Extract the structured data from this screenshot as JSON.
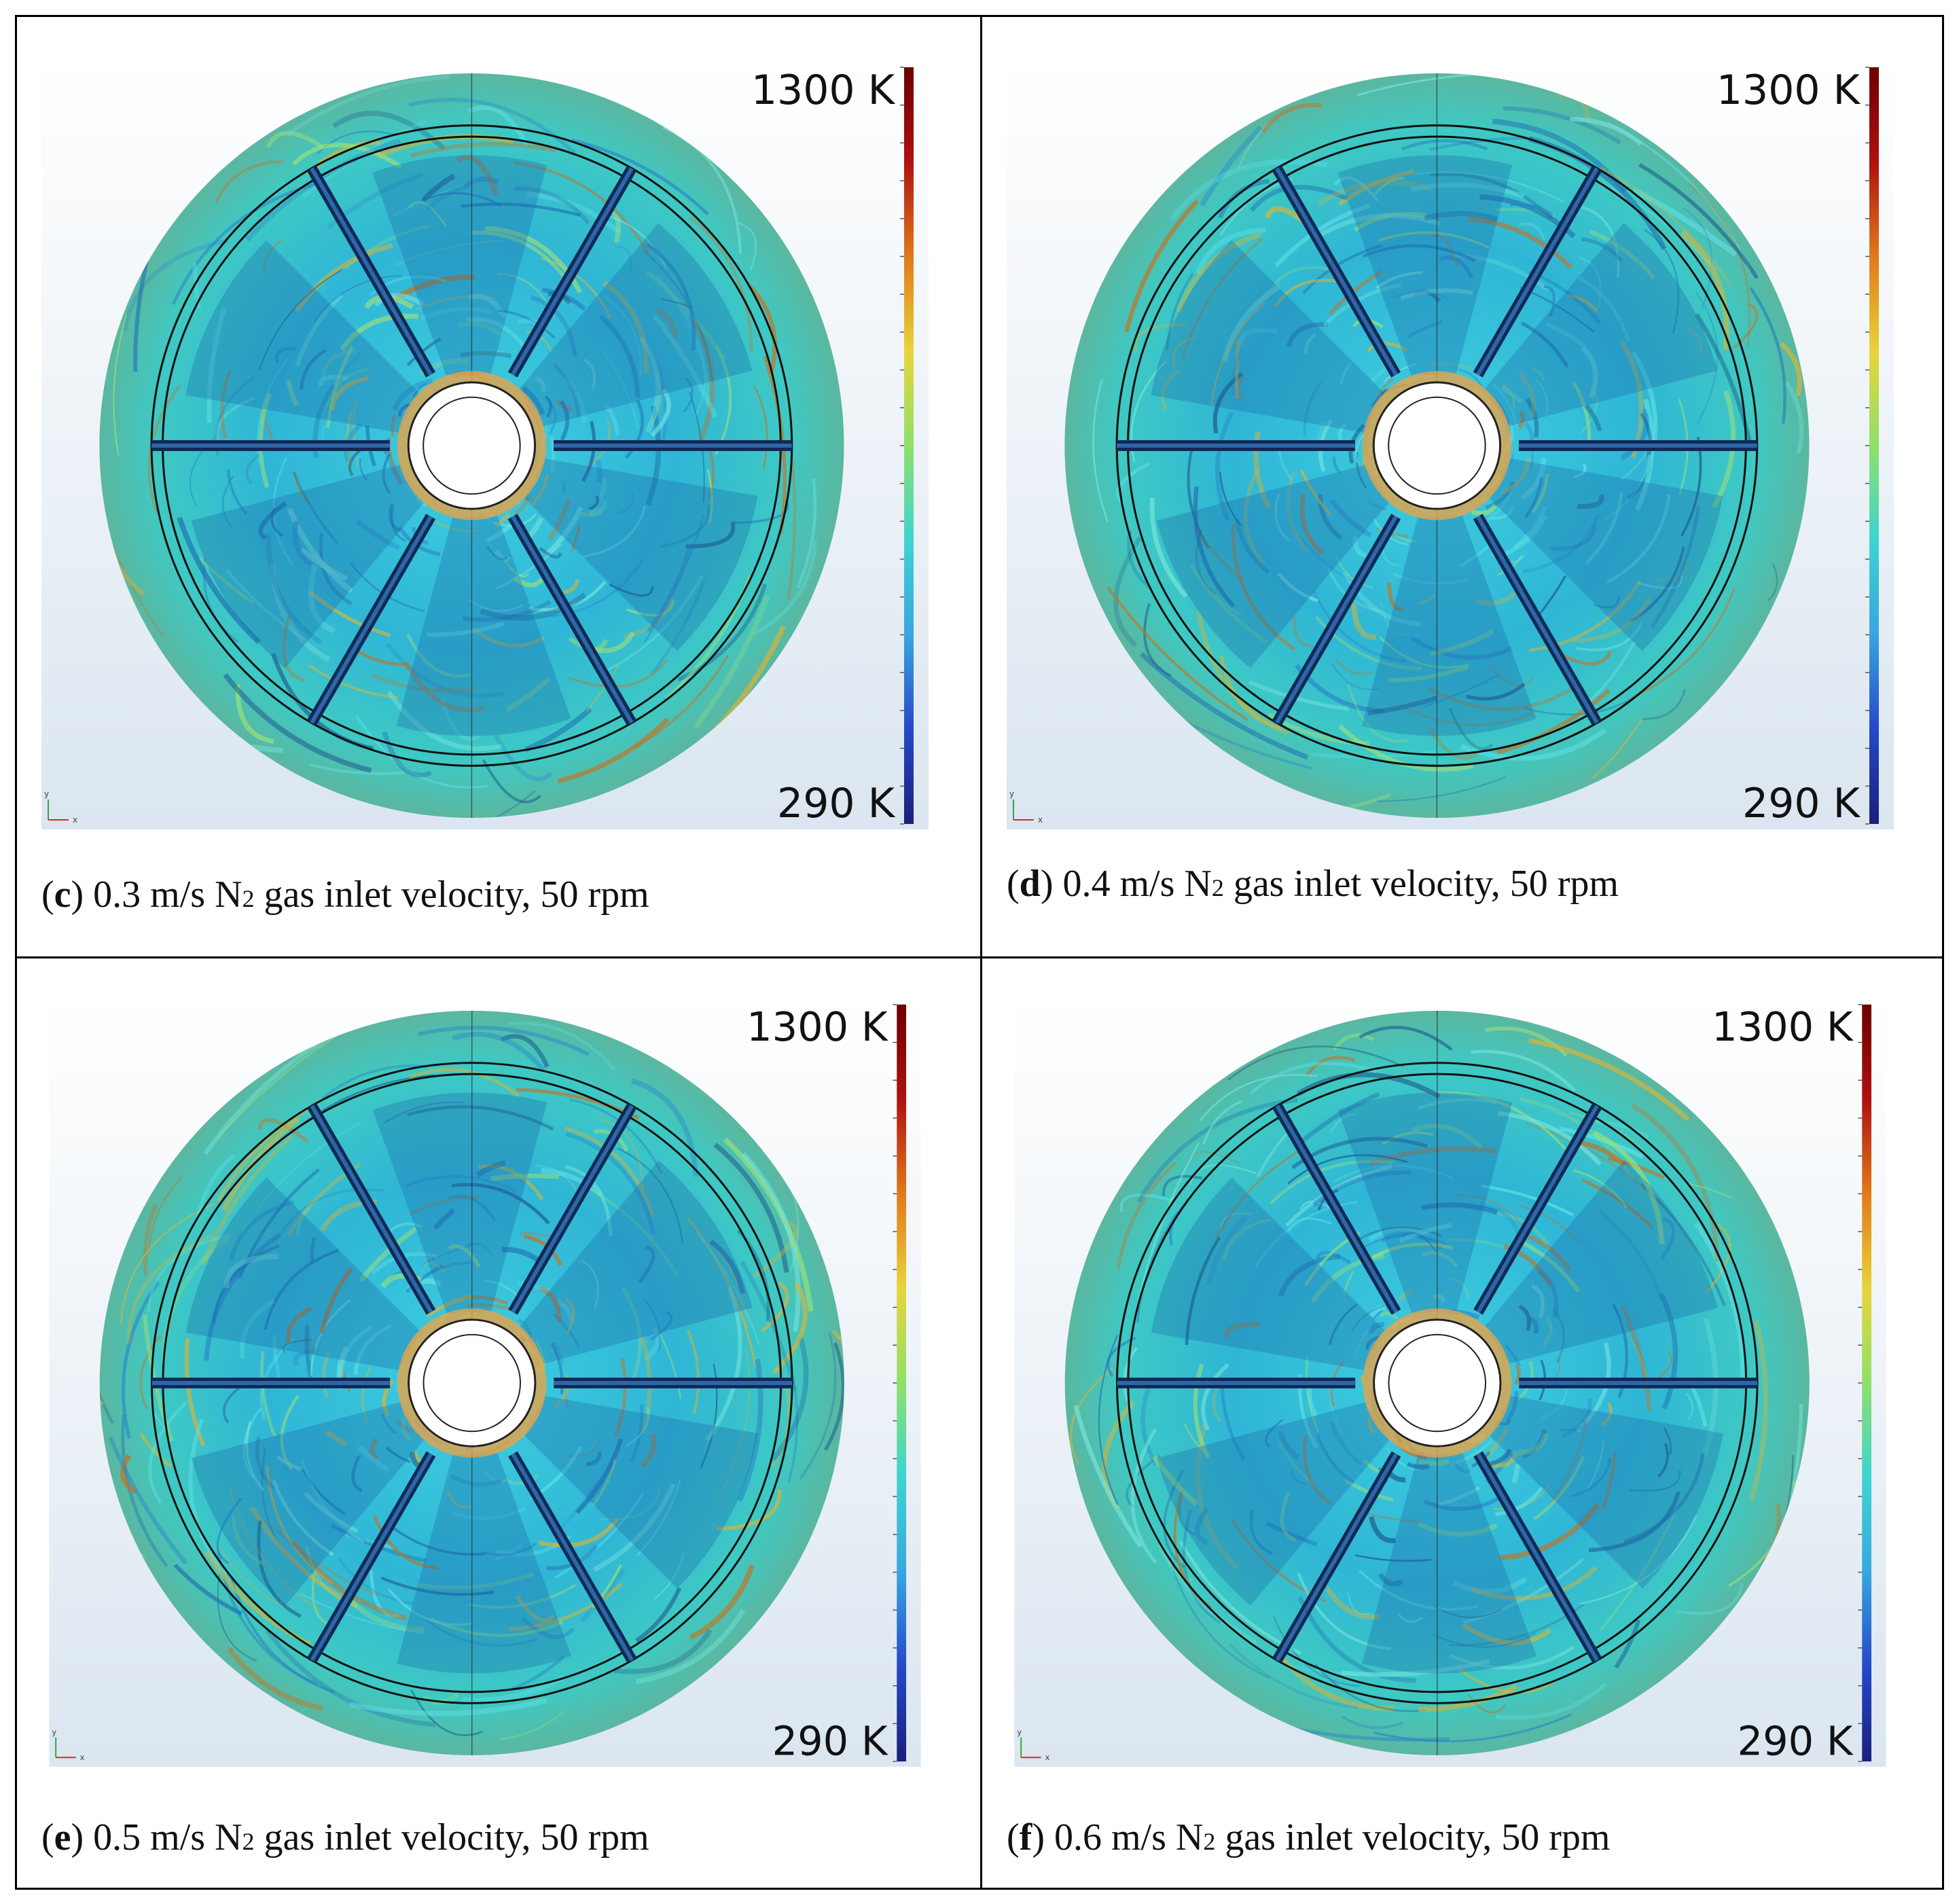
{
  "colorbar": {
    "max_label": "1300 K",
    "min_label": "290 K",
    "colors": [
      "#1a1f7a",
      "#2548c9",
      "#38a6e0",
      "#3dd4d2",
      "#8fe06a",
      "#e8d43a",
      "#e07a1a",
      "#b01010",
      "#6b0000"
    ]
  },
  "axis_labels": {
    "x": "x",
    "y": "y"
  },
  "panels": [
    {
      "letter": "c",
      "velocity": "0.3 m/s N",
      "sub": "2",
      "rest": " gas inlet velocity, 50 rpm",
      "rotation": 0
    },
    {
      "letter": "d",
      "velocity": "0.4 m/s N",
      "sub": "2",
      "rest": " gas inlet velocity, 50 rpm",
      "rotation": 0
    },
    {
      "letter": "e",
      "velocity": "0.5 m/s N",
      "sub": "2",
      "rest": " gas inlet velocity, 50 rpm",
      "rotation": 0
    },
    {
      "letter": "f",
      "velocity": "0.6 m/s N",
      "sub": "2",
      "rest": " gas inlet velocity, 50 rpm",
      "rotation": 0
    }
  ]
}
